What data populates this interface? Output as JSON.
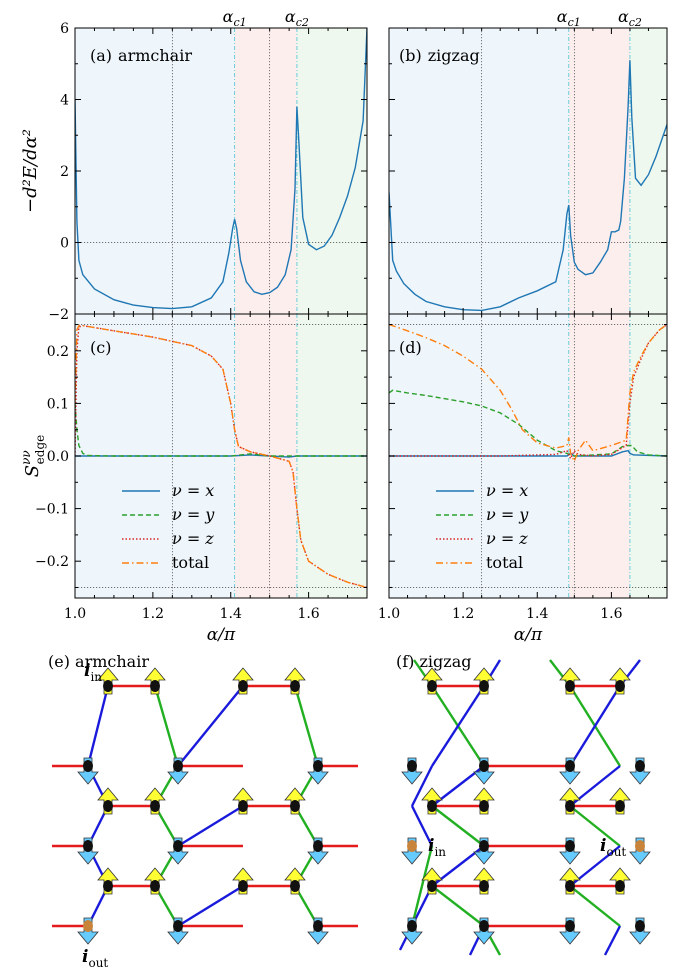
{
  "chart_data": [
    {
      "type": "line",
      "panel": "(a)",
      "title": "armchair",
      "ylabel": "−d²E/dα²",
      "xlim": [
        1.0,
        1.75
      ],
      "ylim": [
        -2,
        6
      ],
      "yticks": [
        "6",
        "4",
        "2",
        "0",
        "−2"
      ],
      "top_labels": [
        "α_c1",
        "α_c2"
      ],
      "alpha_c1": 1.41,
      "alpha_c2": 1.57,
      "region_colors": [
        "#eef5fb",
        "#fdeeee",
        "#eef8ee"
      ],
      "series": [
        {
          "color": "#1f77b4",
          "x": [
            1.0,
            1.005,
            1.01,
            1.02,
            1.05,
            1.1,
            1.15,
            1.2,
            1.25,
            1.3,
            1.35,
            1.38,
            1.395,
            1.405,
            1.41,
            1.415,
            1.425,
            1.44,
            1.46,
            1.48,
            1.5,
            1.52,
            1.54,
            1.555,
            1.565,
            1.57,
            1.575,
            1.585,
            1.6,
            1.62,
            1.64,
            1.66,
            1.68,
            1.7,
            1.72,
            1.74,
            1.75
          ],
          "y": [
            4.0,
            0.6,
            -0.5,
            -0.9,
            -1.3,
            -1.6,
            -1.75,
            -1.82,
            -1.85,
            -1.8,
            -1.55,
            -1.1,
            -0.3,
            0.4,
            0.65,
            0.4,
            -0.5,
            -1.1,
            -1.38,
            -1.45,
            -1.4,
            -1.25,
            -0.9,
            -0.2,
            1.5,
            3.8,
            2.8,
            0.7,
            -0.05,
            -0.2,
            -0.1,
            0.2,
            0.7,
            1.3,
            2.1,
            3.4,
            6.0
          ]
        }
      ]
    },
    {
      "type": "line",
      "panel": "(b)",
      "title": "zigzag",
      "xlim": [
        1.0,
        1.75
      ],
      "ylim": [
        -2,
        6
      ],
      "top_labels": [
        "α_c1",
        "α_c2"
      ],
      "alpha_c1": 1.485,
      "alpha_c2": 1.65,
      "series": [
        {
          "color": "#1f77b4",
          "x": [
            1.0,
            1.01,
            1.02,
            1.04,
            1.07,
            1.1,
            1.15,
            1.2,
            1.25,
            1.3,
            1.35,
            1.4,
            1.45,
            1.47,
            1.48,
            1.485,
            1.49,
            1.5,
            1.51,
            1.53,
            1.55,
            1.57,
            1.59,
            1.6,
            1.61,
            1.62,
            1.625,
            1.635,
            1.645,
            1.65,
            1.655,
            1.665,
            1.68,
            1.7,
            1.72,
            1.75
          ],
          "y": [
            1.4,
            -0.5,
            -0.8,
            -1.15,
            -1.45,
            -1.65,
            -1.8,
            -1.88,
            -1.9,
            -1.8,
            -1.55,
            -1.35,
            -1.1,
            -0.2,
            0.8,
            1.05,
            0.2,
            -0.55,
            -0.75,
            -0.9,
            -0.85,
            -0.55,
            -0.2,
            0.3,
            0.3,
            0.35,
            0.6,
            1.8,
            3.8,
            5.1,
            3.5,
            1.8,
            1.6,
            1.9,
            2.4,
            3.3
          ]
        }
      ]
    },
    {
      "type": "line",
      "panel": "(c)",
      "ylabel": "S^{νν}_edge",
      "xlabel": "α/π",
      "xlim": [
        1.0,
        1.75
      ],
      "ylim": [
        -0.27,
        0.27
      ],
      "xticks": [
        "1.0",
        "1.2",
        "1.4",
        "1.6"
      ],
      "yticks": [
        "0.2",
        "0.1",
        "0.0",
        "−0.1",
        "−0.2"
      ],
      "legend": [
        "ν = x",
        "ν = y",
        "ν = z",
        "total"
      ],
      "series": [
        {
          "name": "ν = x",
          "color": "#1f77b4",
          "style": "solid",
          "x": [
            1.0,
            1.01,
            1.02,
            1.1,
            1.3,
            1.4,
            1.45,
            1.5,
            1.55,
            1.57,
            1.6,
            1.75
          ],
          "y": [
            0.0,
            0.0,
            0.0,
            0.0,
            0.0,
            0.0,
            0.002,
            0.0,
            -0.002,
            0.0,
            0.0,
            0.0
          ]
        },
        {
          "name": "ν = y",
          "color": "#2ca02c",
          "style": "dashed",
          "x": [
            1.0,
            1.005,
            1.01,
            1.02,
            1.03,
            1.1,
            1.3,
            1.4,
            1.45,
            1.5,
            1.55,
            1.6,
            1.75
          ],
          "y": [
            0.1,
            0.05,
            0.02,
            0.005,
            0.001,
            0.0,
            0.0,
            0.0,
            0.004,
            0.0,
            0.0,
            0.0,
            0.0
          ]
        },
        {
          "name": "ν = z",
          "color": "#d62728",
          "style": "dotted",
          "x": [
            1.0,
            1.005,
            1.01,
            1.02,
            1.1,
            1.2,
            1.3,
            1.35,
            1.38,
            1.4,
            1.41,
            1.42,
            1.45,
            1.5,
            1.55,
            1.56,
            1.57,
            1.58,
            1.6,
            1.65,
            1.7,
            1.75
          ],
          "y": [
            0.0,
            0.2,
            0.245,
            0.248,
            0.238,
            0.226,
            0.21,
            0.19,
            0.165,
            0.1,
            0.05,
            0.018,
            0.008,
            0.0,
            -0.01,
            -0.03,
            -0.1,
            -0.16,
            -0.2,
            -0.225,
            -0.24,
            -0.25
          ]
        },
        {
          "name": "total",
          "color": "#ff7f0e",
          "style": "dashdot",
          "x": [
            1.0,
            1.005,
            1.01,
            1.02,
            1.1,
            1.2,
            1.3,
            1.35,
            1.38,
            1.4,
            1.41,
            1.42,
            1.45,
            1.5,
            1.55,
            1.56,
            1.57,
            1.58,
            1.6,
            1.65,
            1.7,
            1.75
          ],
          "y": [
            0.1,
            0.24,
            0.248,
            0.248,
            0.238,
            0.226,
            0.21,
            0.19,
            0.165,
            0.1,
            0.05,
            0.018,
            0.008,
            0.0,
            -0.01,
            -0.03,
            -0.1,
            -0.16,
            -0.2,
            -0.225,
            -0.24,
            -0.25
          ]
        }
      ]
    },
    {
      "type": "line",
      "panel": "(d)",
      "xlabel": "α/π",
      "xlim": [
        1.0,
        1.75
      ],
      "ylim": [
        -0.27,
        0.27
      ],
      "xticks": [
        "1.0",
        "1.2",
        "1.4",
        "1.6"
      ],
      "legend": [
        "ν = x",
        "ν = y",
        "ν = z",
        "total"
      ],
      "series": [
        {
          "name": "ν = x",
          "color": "#1f77b4",
          "style": "solid",
          "x": [
            1.0,
            1.1,
            1.3,
            1.48,
            1.49,
            1.5,
            1.6,
            1.63,
            1.645,
            1.65,
            1.66,
            1.75
          ],
          "y": [
            0.0,
            0.0,
            0.0,
            0.0,
            0.005,
            0.0,
            0.0,
            0.008,
            0.01,
            0.005,
            0.002,
            0.0
          ]
        },
        {
          "name": "ν = y",
          "color": "#2ca02c",
          "style": "dashed",
          "x": [
            1.0,
            1.01,
            1.05,
            1.1,
            1.2,
            1.25,
            1.3,
            1.35,
            1.4,
            1.45,
            1.48,
            1.5,
            1.6,
            1.63,
            1.645,
            1.655,
            1.67,
            1.7,
            1.75
          ],
          "y": [
            0.12,
            0.125,
            0.12,
            0.115,
            0.103,
            0.095,
            0.082,
            0.06,
            0.03,
            0.01,
            0.005,
            0.0,
            0.004,
            0.018,
            0.02,
            0.02,
            0.008,
            0.002,
            0.0
          ]
        },
        {
          "name": "ν = z",
          "color": "#d62728",
          "style": "dotted",
          "x": [
            1.0,
            1.1,
            1.3,
            1.45,
            1.48,
            1.49,
            1.5,
            1.51,
            1.55,
            1.6,
            1.64,
            1.65,
            1.66,
            1.68,
            1.7,
            1.73,
            1.75
          ],
          "y": [
            0.0,
            0.0,
            0.0,
            0.003,
            0.01,
            -0.005,
            0.01,
            0.003,
            0.0,
            0.003,
            0.02,
            0.1,
            0.15,
            0.185,
            0.215,
            0.24,
            0.25
          ]
        },
        {
          "name": "total",
          "color": "#ff7f0e",
          "style": "dashdot",
          "x": [
            1.0,
            1.05,
            1.1,
            1.15,
            1.2,
            1.25,
            1.3,
            1.33,
            1.36,
            1.4,
            1.45,
            1.48,
            1.485,
            1.49,
            1.5,
            1.51,
            1.53,
            1.55,
            1.6,
            1.64,
            1.65,
            1.66,
            1.68,
            1.7,
            1.73,
            1.75
          ],
          "y": [
            0.25,
            0.238,
            0.225,
            0.21,
            0.19,
            0.165,
            0.125,
            0.09,
            0.05,
            0.025,
            0.015,
            0.02,
            0.035,
            0.005,
            -0.01,
            0.01,
            0.03,
            0.01,
            0.02,
            0.03,
            0.12,
            0.16,
            0.19,
            0.215,
            0.24,
            0.25
          ]
        }
      ]
    }
  ],
  "lattice": {
    "e_title": "(e) armchair",
    "f_title": "(f) zigzag",
    "e_in": "in",
    "e_out": "out",
    "f_in": "in",
    "f_out": "out",
    "site_label": "i",
    "bond_colors": {
      "x": "#e41a1c",
      "y": "#1a1adc",
      "z": "#22b022"
    },
    "spin_up_color": "#ffff33",
    "spin_down_color": "#66ccff"
  }
}
